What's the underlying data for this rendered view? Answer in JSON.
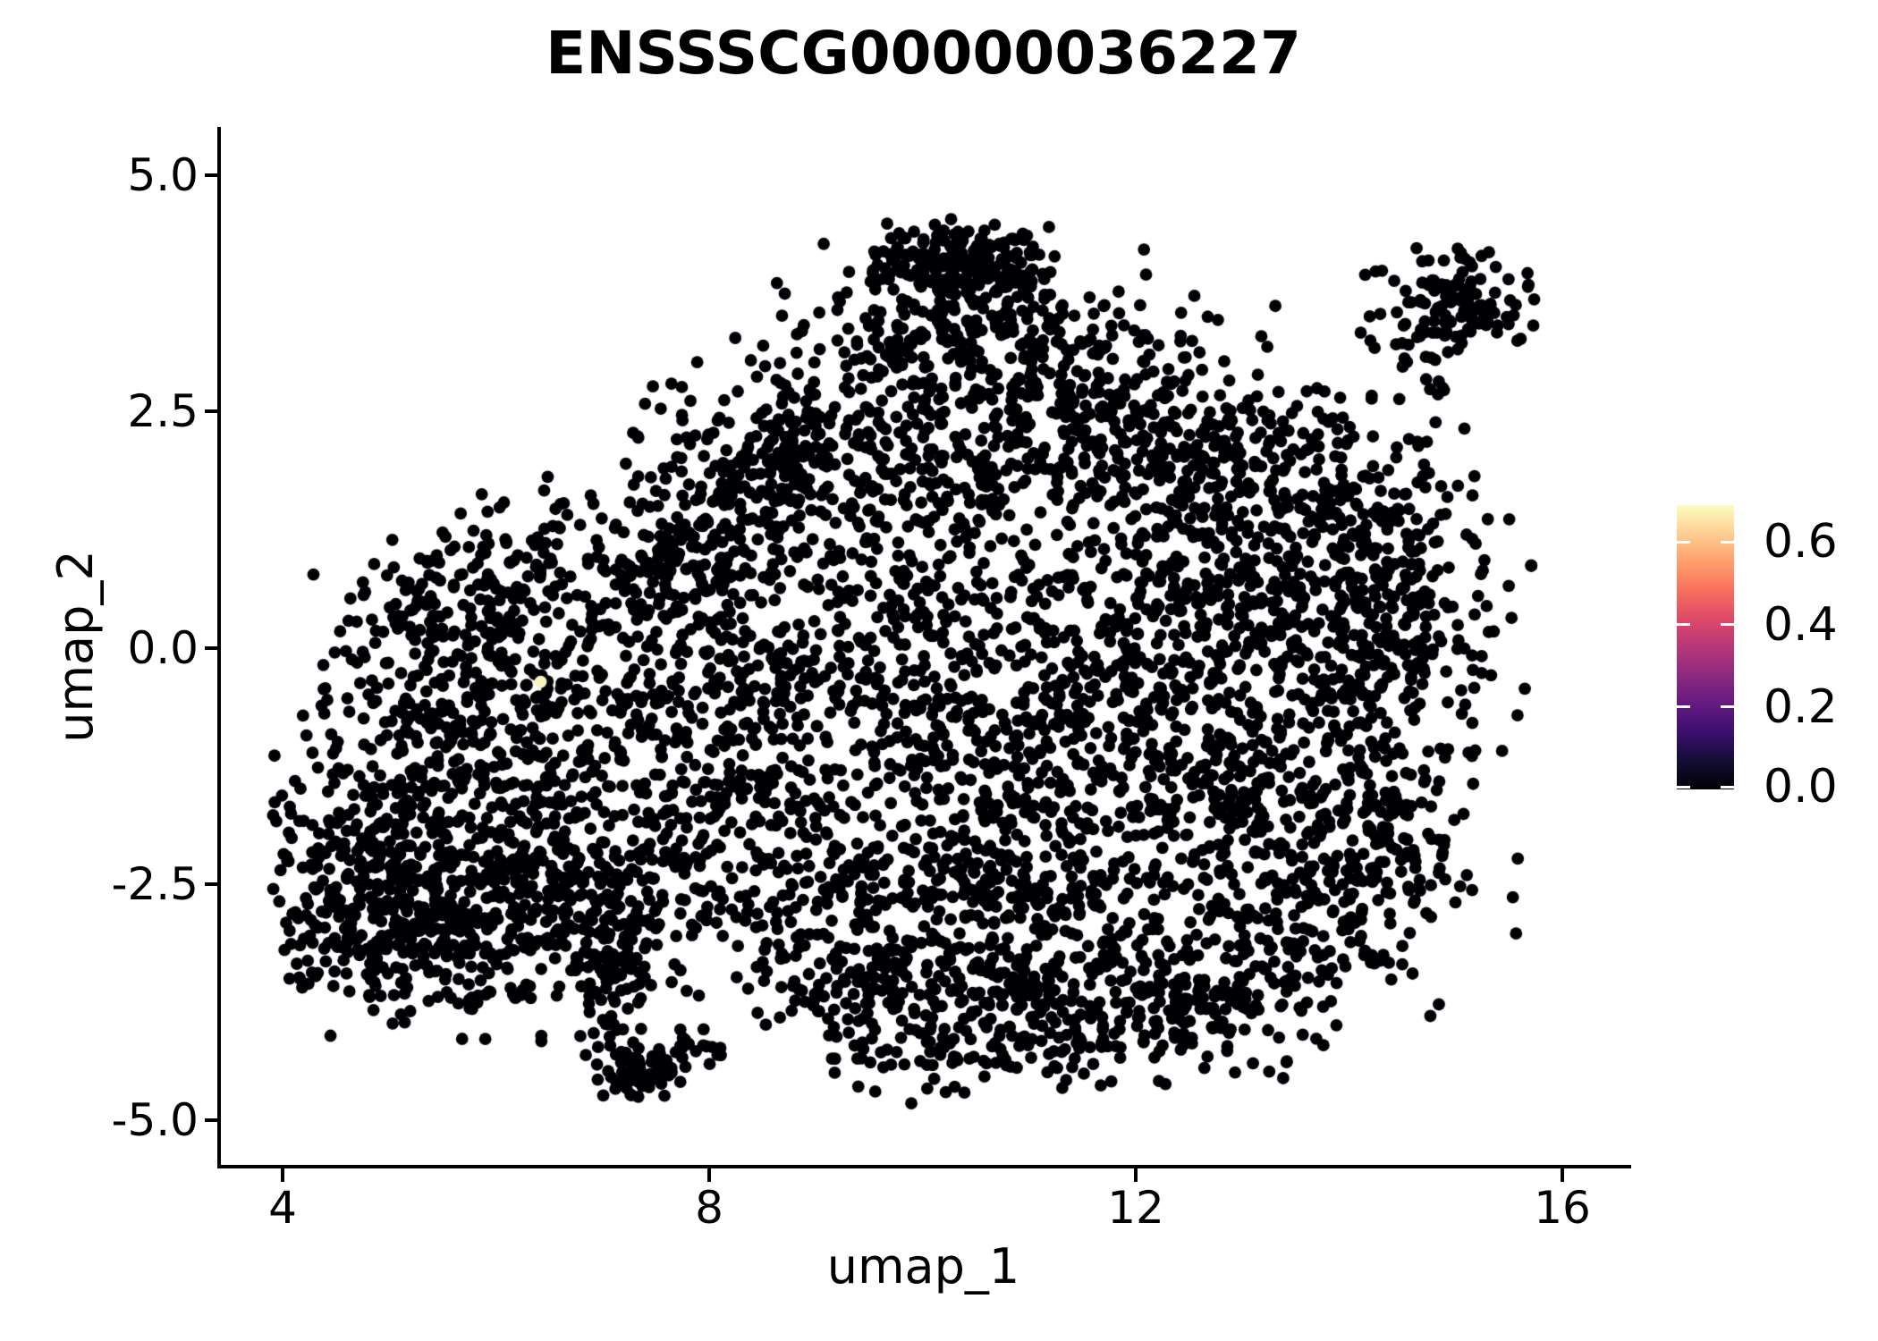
{
  "title": "ENSSSCG00000036227",
  "axes": {
    "x": {
      "label": "umap_1",
      "tick_labels": [
        "4",
        "8",
        "12",
        "16"
      ],
      "tick_values": [
        4,
        8,
        12,
        16
      ],
      "range": [
        3.4,
        16.6
      ]
    },
    "y": {
      "label": "umap_2",
      "tick_labels": [
        "5.0",
        "2.5",
        "0.0",
        "-2.5",
        "-5.0"
      ],
      "tick_values": [
        5.0,
        2.5,
        0.0,
        -2.5,
        -5.0
      ],
      "range": [
        -5.49,
        5.51
      ]
    }
  },
  "colorbar": {
    "tick_labels": [
      "0.6",
      "0.4",
      "0.2",
      "0.0"
    ],
    "tick_values": [
      0.6,
      0.4,
      0.2,
      0.0
    ],
    "min_value": 0.0,
    "max_value": 0.69,
    "gradient_low_to_high": [
      "#000004",
      "#140e36",
      "#3b0f70",
      "#641a80",
      "#8c2981",
      "#b73779",
      "#de4968",
      "#f7705c",
      "#fe9f6d",
      "#fecf92",
      "#fcfdbf"
    ]
  },
  "colors": {
    "background": "#ffffff",
    "axis": "#000000",
    "text": "#000000",
    "point": "#000004"
  },
  "chart_data": {
    "type": "scatter",
    "title": "ENSSSCG00000036227",
    "xlabel": "umap_1",
    "ylabel": "umap_2",
    "xlim": [
      3.4,
      16.6
    ],
    "ylim": [
      -5.5,
      5.5
    ],
    "legend_position": "right",
    "grid": false,
    "point_radius_px": 6.9,
    "point_color": "#000004",
    "description": "UMAP feature plot of ~6000 cells; nearly all cells have zero expression (black, magma colormap minimum). One high-expression cell shown in pale yellow. Main irregular blob spans umap_1 4-15.3, umap_2 -4.7 to 4.6, with a detached satellite cluster near (15, 3.6) and a thin tail descending to (7.3, -4.7).",
    "cluster_fields": [
      "center_umap1",
      "center_umap2",
      "sigma_u",
      "sigma_v",
      "n_points"
    ],
    "clusters": [
      [
        10.25,
        4.15,
        0.4,
        0.18,
        110
      ],
      [
        9.95,
        3.45,
        0.55,
        0.4,
        140
      ],
      [
        11.15,
        3.15,
        0.6,
        0.45,
        150
      ],
      [
        10.6,
        3.95,
        0.3,
        0.2,
        70
      ],
      [
        9.0,
        2.3,
        0.7,
        0.55,
        160
      ],
      [
        10.4,
        2.0,
        0.75,
        0.6,
        190
      ],
      [
        11.9,
        2.3,
        0.7,
        0.55,
        180
      ],
      [
        13.1,
        1.8,
        0.65,
        0.55,
        170
      ],
      [
        14.15,
        1.15,
        0.55,
        0.65,
        160
      ],
      [
        8.0,
        1.4,
        0.5,
        0.45,
        80
      ],
      [
        8.55,
        2.05,
        0.4,
        0.35,
        55
      ],
      [
        8.5,
        1.7,
        0.35,
        0.3,
        45
      ],
      [
        7.9,
        1.0,
        0.35,
        0.3,
        55
      ],
      [
        7.3,
        0.75,
        0.3,
        0.25,
        40
      ],
      [
        13.0,
        0.4,
        0.85,
        0.75,
        300
      ],
      [
        14.4,
        -0.1,
        0.55,
        0.85,
        210
      ],
      [
        11.75,
        -0.3,
        0.75,
        0.75,
        230
      ],
      [
        12.9,
        -1.5,
        0.85,
        0.65,
        250
      ],
      [
        14.0,
        -2.2,
        0.7,
        0.55,
        170
      ],
      [
        13.6,
        -3.0,
        0.55,
        0.45,
        110
      ],
      [
        12.8,
        -3.9,
        0.4,
        0.35,
        60
      ],
      [
        9.85,
        0.7,
        0.7,
        0.65,
        150
      ],
      [
        10.7,
        -0.9,
        0.65,
        0.7,
        170
      ],
      [
        8.85,
        -0.4,
        0.65,
        0.75,
        140
      ],
      [
        9.7,
        -2.0,
        0.75,
        0.65,
        180
      ],
      [
        11.3,
        -2.5,
        0.75,
        0.6,
        190
      ],
      [
        10.3,
        -3.4,
        0.75,
        0.55,
        180
      ],
      [
        12.2,
        -3.5,
        0.65,
        0.5,
        150
      ],
      [
        9.0,
        -3.3,
        0.6,
        0.45,
        120
      ],
      [
        10.1,
        -4.2,
        0.55,
        0.3,
        70
      ],
      [
        11.2,
        -4.0,
        0.5,
        0.35,
        70
      ],
      [
        6.35,
        0.1,
        0.55,
        0.55,
        95
      ],
      [
        6.1,
        0.95,
        0.45,
        0.38,
        75
      ],
      [
        5.35,
        0.3,
        0.45,
        0.45,
        85
      ],
      [
        5.6,
        -0.8,
        0.65,
        0.65,
        140
      ],
      [
        4.85,
        -1.8,
        0.55,
        0.65,
        160
      ],
      [
        5.85,
        -1.9,
        0.65,
        0.65,
        180
      ],
      [
        4.75,
        -2.85,
        0.5,
        0.55,
        170
      ],
      [
        5.6,
        -3.15,
        0.55,
        0.45,
        160
      ],
      [
        6.6,
        -2.9,
        0.55,
        0.45,
        130
      ],
      [
        7.2,
        -2.1,
        0.55,
        0.55,
        125
      ],
      [
        8.1,
        -1.3,
        0.55,
        0.65,
        115
      ],
      [
        7.0,
        -1.0,
        0.5,
        0.55,
        105
      ],
      [
        7.95,
        0.25,
        0.55,
        0.55,
        100
      ],
      [
        7.35,
        -3.0,
        0.35,
        0.35,
        60
      ],
      [
        7.05,
        -3.75,
        0.15,
        0.3,
        35
      ],
      [
        7.3,
        -4.5,
        0.2,
        0.18,
        55
      ],
      [
        7.7,
        -4.28,
        0.22,
        0.12,
        25
      ],
      [
        14.95,
        3.62,
        0.36,
        0.26,
        125
      ],
      [
        14.55,
        3.05,
        0.2,
        0.2,
        12
      ],
      [
        14.85,
        2.65,
        0.12,
        0.12,
        5
      ]
    ],
    "highlight_points": [
      {
        "x": 6.42,
        "y": -0.36,
        "value": 0.69,
        "color": "#f8f3c0"
      }
    ]
  }
}
